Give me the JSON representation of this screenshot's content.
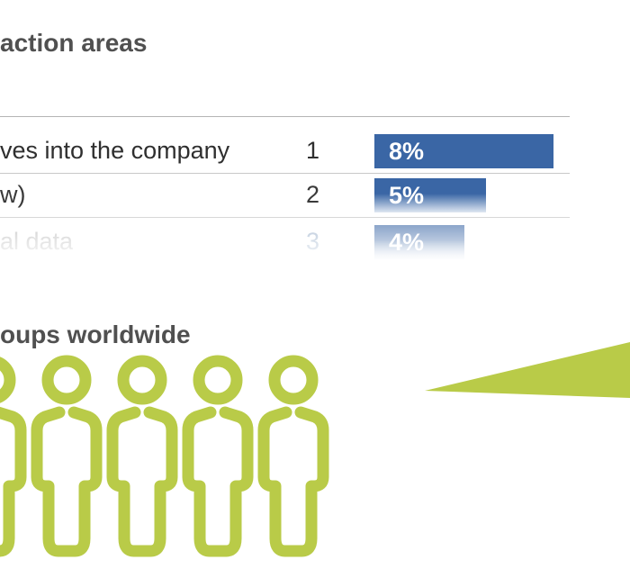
{
  "section_1": {
    "title": "action areas"
  },
  "section_2": {
    "title": "oups worldwide"
  },
  "colors": {
    "bar_blue": "#3a66a5",
    "person_green": "#b9cb48",
    "heading_gray": "#505050"
  },
  "chart_data": {
    "type": "bar",
    "orientation": "horizontal",
    "title": "action areas",
    "categories": [
      "ves into the company",
      "w)",
      "al data"
    ],
    "ranks": [
      "1",
      "2",
      "3"
    ],
    "values": [
      8,
      5,
      4
    ],
    "value_labels": [
      "8%",
      "5%",
      "4%"
    ],
    "unit": "%"
  },
  "people": {
    "icon": "person-outline-icon",
    "count": 5
  }
}
